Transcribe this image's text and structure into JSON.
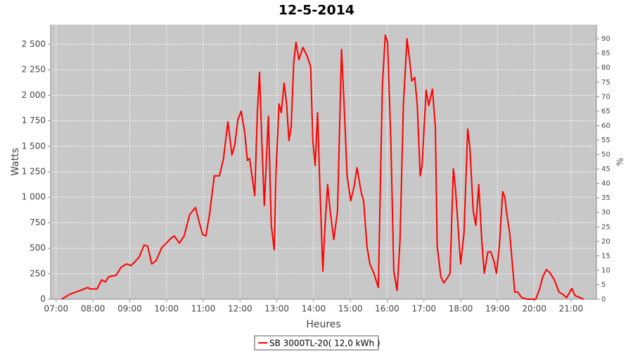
{
  "chart_data": {
    "type": "line",
    "title": "12-5-2014",
    "xlabel": "Heures",
    "ylabel": "Watts",
    "y2label": "%",
    "x": [
      7.15,
      7.38,
      7.61,
      7.76,
      7.86,
      7.92,
      8.11,
      8.24,
      8.34,
      8.43,
      8.63,
      8.76,
      8.91,
      9.03,
      9.14,
      9.26,
      9.39,
      9.49,
      9.6,
      9.72,
      9.87,
      10.0,
      10.1,
      10.21,
      10.35,
      10.48,
      10.63,
      10.79,
      10.86,
      10.98,
      11.07,
      11.17,
      11.3,
      11.44,
      11.55,
      11.67,
      11.78,
      11.86,
      11.94,
      12.03,
      12.13,
      12.2,
      12.26,
      12.4,
      12.47,
      12.53,
      12.59,
      12.66,
      12.77,
      12.85,
      12.93,
      12.98,
      13.06,
      13.12,
      13.2,
      13.27,
      13.33,
      13.39,
      13.46,
      13.52,
      13.6,
      13.71,
      13.83,
      13.92,
      13.98,
      14.04,
      14.11,
      14.17,
      14.25,
      14.3,
      14.38,
      14.45,
      14.55,
      14.65,
      14.76,
      14.83,
      14.91,
      15.01,
      15.11,
      15.18,
      15.3,
      15.36,
      15.45,
      15.53,
      15.64,
      15.76,
      15.87,
      15.95,
      16.01,
      16.1,
      16.18,
      16.27,
      16.35,
      16.44,
      16.54,
      16.62,
      16.67,
      16.75,
      16.82,
      16.9,
      16.95,
      17.06,
      17.13,
      17.23,
      17.31,
      17.36,
      17.46,
      17.54,
      17.63,
      17.71,
      17.8,
      17.86,
      18.0,
      18.09,
      18.19,
      18.25,
      18.34,
      18.41,
      18.49,
      18.57,
      18.64,
      18.74,
      18.82,
      18.91,
      18.97,
      19.05,
      19.14,
      19.2,
      19.24,
      19.33,
      19.47,
      19.55,
      19.66,
      19.81,
      20.04,
      20.15,
      20.23,
      20.33,
      20.42,
      20.54,
      20.67,
      20.77,
      20.88,
      21.02,
      21.11,
      21.25,
      21.34
    ],
    "series": [
      {
        "name": "SB 3000TL-20( 12,0 kWh )",
        "color": "#ff0000",
        "values": [
          0,
          50,
          80,
          100,
          115,
          100,
          100,
          190,
          170,
          220,
          235,
          310,
          345,
          330,
          365,
          415,
          530,
          520,
          345,
          380,
          505,
          550,
          590,
          620,
          550,
          620,
          830,
          900,
          795,
          635,
          620,
          830,
          1210,
          1210,
          1380,
          1740,
          1415,
          1520,
          1760,
          1845,
          1625,
          1360,
          1380,
          1015,
          1830,
          2225,
          1555,
          920,
          1795,
          725,
          485,
          1245,
          1915,
          1830,
          2120,
          1900,
          1555,
          1690,
          2315,
          2520,
          2350,
          2470,
          2380,
          2280,
          1555,
          1310,
          1830,
          1105,
          275,
          655,
          1125,
          865,
          585,
          865,
          2450,
          1900,
          1210,
          965,
          1120,
          1290,
          1035,
          965,
          520,
          345,
          255,
          115,
          2105,
          2590,
          2520,
          1555,
          275,
          85,
          585,
          1900,
          2555,
          2315,
          2140,
          2175,
          1900,
          1210,
          1310,
          2050,
          1900,
          2060,
          1690,
          520,
          220,
          160,
          205,
          255,
          1280,
          1070,
          345,
          655,
          1670,
          1485,
          865,
          725,
          1125,
          585,
          255,
          465,
          465,
          365,
          255,
          520,
          1055,
          1000,
          865,
          655,
          70,
          70,
          15,
          0,
          0,
          105,
          220,
          290,
          260,
          195,
          70,
          50,
          15,
          105,
          35,
          15,
          0
        ]
      }
    ],
    "xlim": [
      6.85,
      21.69
    ],
    "xticks": [
      {
        "value": 7,
        "label": "07:00"
      },
      {
        "value": 8,
        "label": "08:00"
      },
      {
        "value": 9,
        "label": "09:00"
      },
      {
        "value": 10,
        "label": "10:00"
      },
      {
        "value": 11,
        "label": "11:00"
      },
      {
        "value": 12,
        "label": "12:00"
      },
      {
        "value": 13,
        "label": "13:00"
      },
      {
        "value": 14,
        "label": "14:00"
      },
      {
        "value": 15,
        "label": "15:00"
      },
      {
        "value": 16,
        "label": "16:00"
      },
      {
        "value": 17,
        "label": "17:00"
      },
      {
        "value": 18,
        "label": "18:00"
      },
      {
        "value": 19,
        "label": "19:00"
      },
      {
        "value": 20,
        "label": "20:00"
      },
      {
        "value": 21,
        "label": "21:00"
      }
    ],
    "ylim": [
      0,
      2693
    ],
    "yticks": [
      0,
      250,
      500,
      750,
      {
        "value": 1000,
        "label": "1 000"
      },
      {
        "value": 1250,
        "label": "1 250"
      },
      {
        "value": 1500,
        "label": "1 500"
      },
      {
        "value": 1750,
        "label": "1 750"
      },
      {
        "value": 2000,
        "label": "2 000"
      },
      {
        "value": 2250,
        "label": "2 250"
      },
      {
        "value": 2500,
        "label": "2 500"
      }
    ],
    "y2lim": [
      0,
      94.9
    ],
    "y2ticks": [
      0,
      5,
      10,
      15,
      20,
      25,
      30,
      35,
      40,
      45,
      50,
      55,
      60,
      65,
      70,
      75,
      80,
      85,
      90
    ],
    "grid": true,
    "legend": "bottom",
    "background": "#c8c8c8"
  }
}
